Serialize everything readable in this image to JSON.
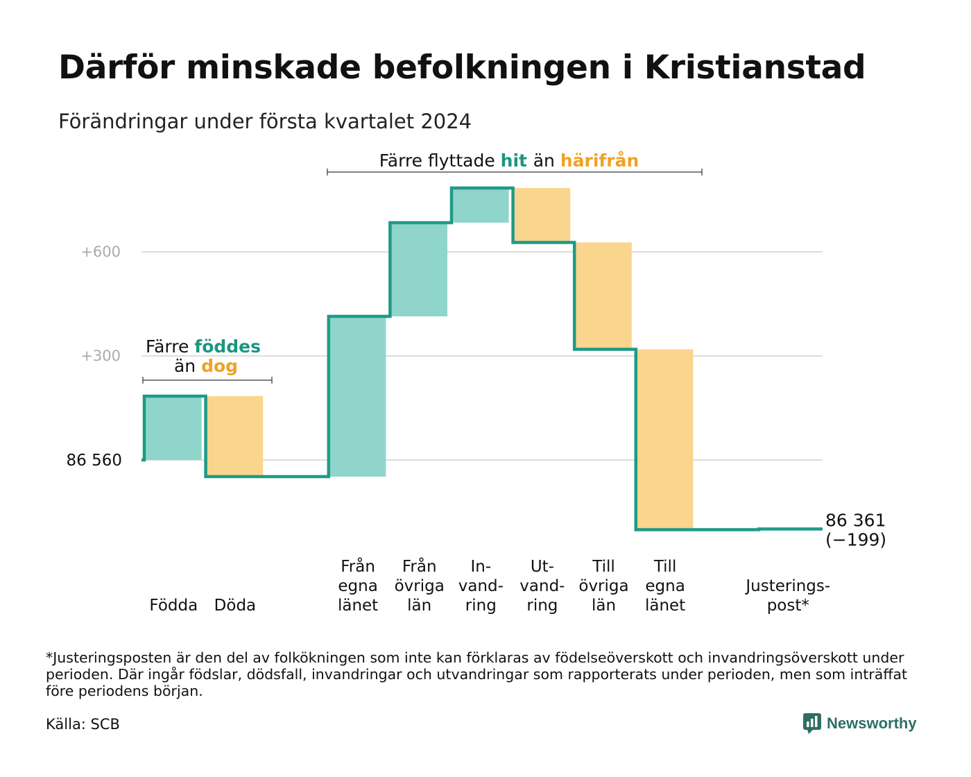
{
  "header": {
    "title": "Därför minskade befolkningen i Kristianstad",
    "subtitle": "Förändringar under första kvartalet 2024"
  },
  "colors": {
    "teal_line": "#1f9a86",
    "teal_fill": "#8fd5cc",
    "orange_fill": "#f9d58d",
    "teal_text": "#1a9582",
    "orange_text": "#f0a224",
    "grid": "#dddddd",
    "tick_text": "#aaaaaa"
  },
  "annotations": {
    "births": {
      "line1_a": "Färre",
      "line1_b": "föddes",
      "line2_a": "än",
      "line2_b": "dog"
    },
    "migration": {
      "a": "Färre flyttade",
      "b": "hit",
      "c": "än",
      "d": "härifrån"
    }
  },
  "chart_data": {
    "type": "waterfall",
    "start_label": "86  560",
    "start_value": 86560,
    "end_label": "86 361",
    "end_change": "(−199)",
    "ylim": [
      -200,
      840
    ],
    "ytick_labels": [
      {
        "value": 600,
        "label": "+600"
      },
      {
        "value": 300,
        "label": "+300"
      }
    ],
    "grid_values": [
      0,
      300,
      600
    ],
    "steps": [
      {
        "label": [
          "Födda"
        ],
        "change": 184,
        "kind": "in"
      },
      {
        "label": [
          "Döda"
        ],
        "change": -232,
        "kind": "out"
      },
      {
        "label": [],
        "change": 0,
        "kind": "gap"
      },
      {
        "label": [
          "Från",
          "egna",
          "länet"
        ],
        "change": 462,
        "kind": "in"
      },
      {
        "label": [
          "Från",
          "övriga",
          "län"
        ],
        "change": 270,
        "kind": "in"
      },
      {
        "label": [
          "In-",
          "vand-",
          "ring"
        ],
        "change": 100,
        "kind": "in"
      },
      {
        "label": [
          "Ut-",
          "vand-",
          "ring"
        ],
        "change": -157,
        "kind": "out"
      },
      {
        "label": [
          "Till",
          "övriga",
          "län"
        ],
        "change": -308,
        "kind": "out"
      },
      {
        "label": [
          "Till",
          "egna",
          "länet"
        ],
        "change": -520,
        "kind": "out"
      },
      {
        "label": [],
        "change": 0,
        "kind": "gap"
      },
      {
        "label": [
          "Justerings-",
          "post*"
        ],
        "change": 2,
        "kind": "in"
      }
    ]
  },
  "footnote": "*Justeringsposten är den del av folkökningen som inte kan förklaras av födelseöverskott och invandringsöverskott under perioden. Där ingår födslar, dödsfall, invandringar och utvandringar som rapporterats under perioden, men som inträffat före periodens början.",
  "source": "Källa: SCB",
  "brand": {
    "name": "Newsworthy",
    "icon": "newsworthy-logo-icon"
  }
}
